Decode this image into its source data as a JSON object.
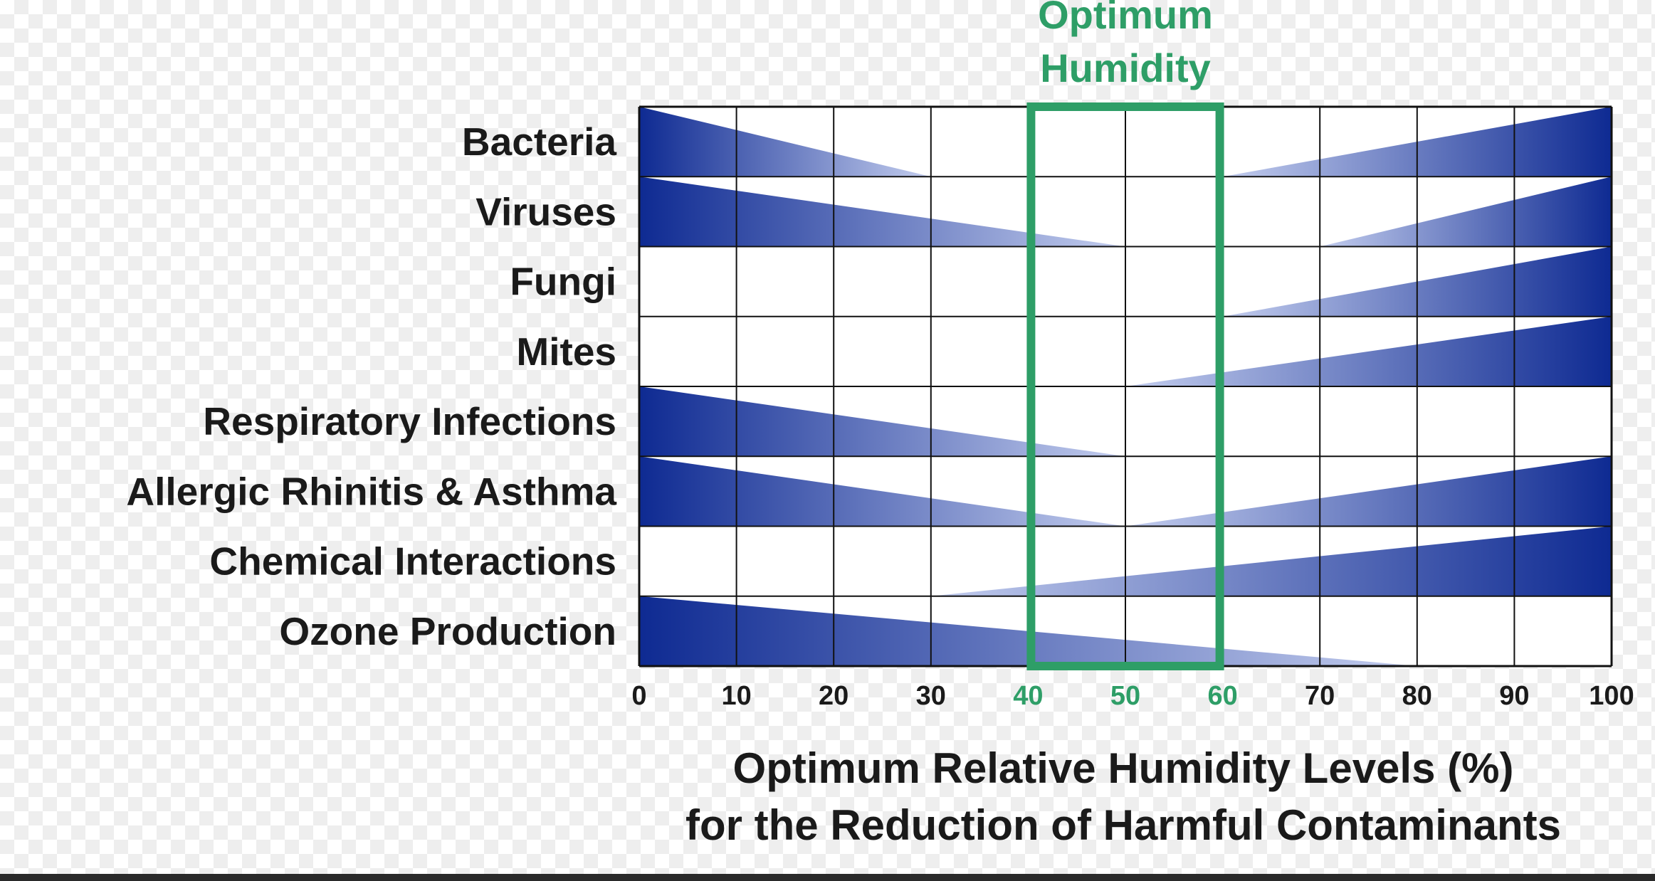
{
  "chart_data": {
    "type": "bar",
    "title": "",
    "xlabel": "Optimum Relative Humidity Levels (%)",
    "xlabel_line2": "for the Reduction of Harmful Contaminants",
    "ylabel": "",
    "xlim": [
      0,
      100
    ],
    "x_ticks": [
      "0",
      "10",
      "20",
      "30",
      "40",
      "50",
      "60",
      "70",
      "80",
      "90",
      "100"
    ],
    "highlight_ticks": [
      "40",
      "50",
      "60"
    ],
    "optimum_zone": {
      "label_line1": "Optimum",
      "label_line2": "Humidity",
      "range": [
        40,
        60
      ]
    },
    "grid": true,
    "encoding": "Wedge thickness shows the relative level of each contaminant or effect at a given relative humidity.",
    "categories": [
      "Bacteria",
      "Viruses",
      "Fungi",
      "Mites",
      "Respiratory Infections",
      "Allergic Rhinitis & Asthma",
      "Chemical Interactions",
      "Ozone Production"
    ],
    "series": [
      {
        "category": "Bacteria",
        "wedges": [
          {
            "from": 0,
            "to": 30,
            "thick_at": 0
          },
          {
            "from": 60,
            "to": 100,
            "thick_at": 100
          }
        ]
      },
      {
        "category": "Viruses",
        "wedges": [
          {
            "from": 0,
            "to": 50,
            "thick_at": 0
          },
          {
            "from": 70,
            "to": 100,
            "thick_at": 100
          }
        ]
      },
      {
        "category": "Fungi",
        "wedges": [
          {
            "from": 60,
            "to": 100,
            "thick_at": 100
          }
        ]
      },
      {
        "category": "Mites",
        "wedges": [
          {
            "from": 50,
            "to": 100,
            "thick_at": 100
          }
        ]
      },
      {
        "category": "Respiratory Infections",
        "wedges": [
          {
            "from": 0,
            "to": 50,
            "thick_at": 0
          }
        ]
      },
      {
        "category": "Allergic Rhinitis & Asthma",
        "wedges": [
          {
            "from": 0,
            "to": 50,
            "thick_at": 0
          },
          {
            "from": 50,
            "to": 100,
            "thick_at": 100
          }
        ]
      },
      {
        "category": "Chemical Interactions",
        "wedges": [
          {
            "from": 30,
            "to": 100,
            "thick_at": 100
          }
        ]
      },
      {
        "category": "Ozone Production",
        "wedges": [
          {
            "from": 0,
            "to": 80,
            "thick_at": 0
          }
        ]
      }
    ],
    "colors": {
      "wedge_dark": "#0e2a92",
      "wedge_light": "#c3cdee",
      "optimum": "#2e9e67",
      "grid": "#111111",
      "text": "#1a1a1a"
    }
  }
}
